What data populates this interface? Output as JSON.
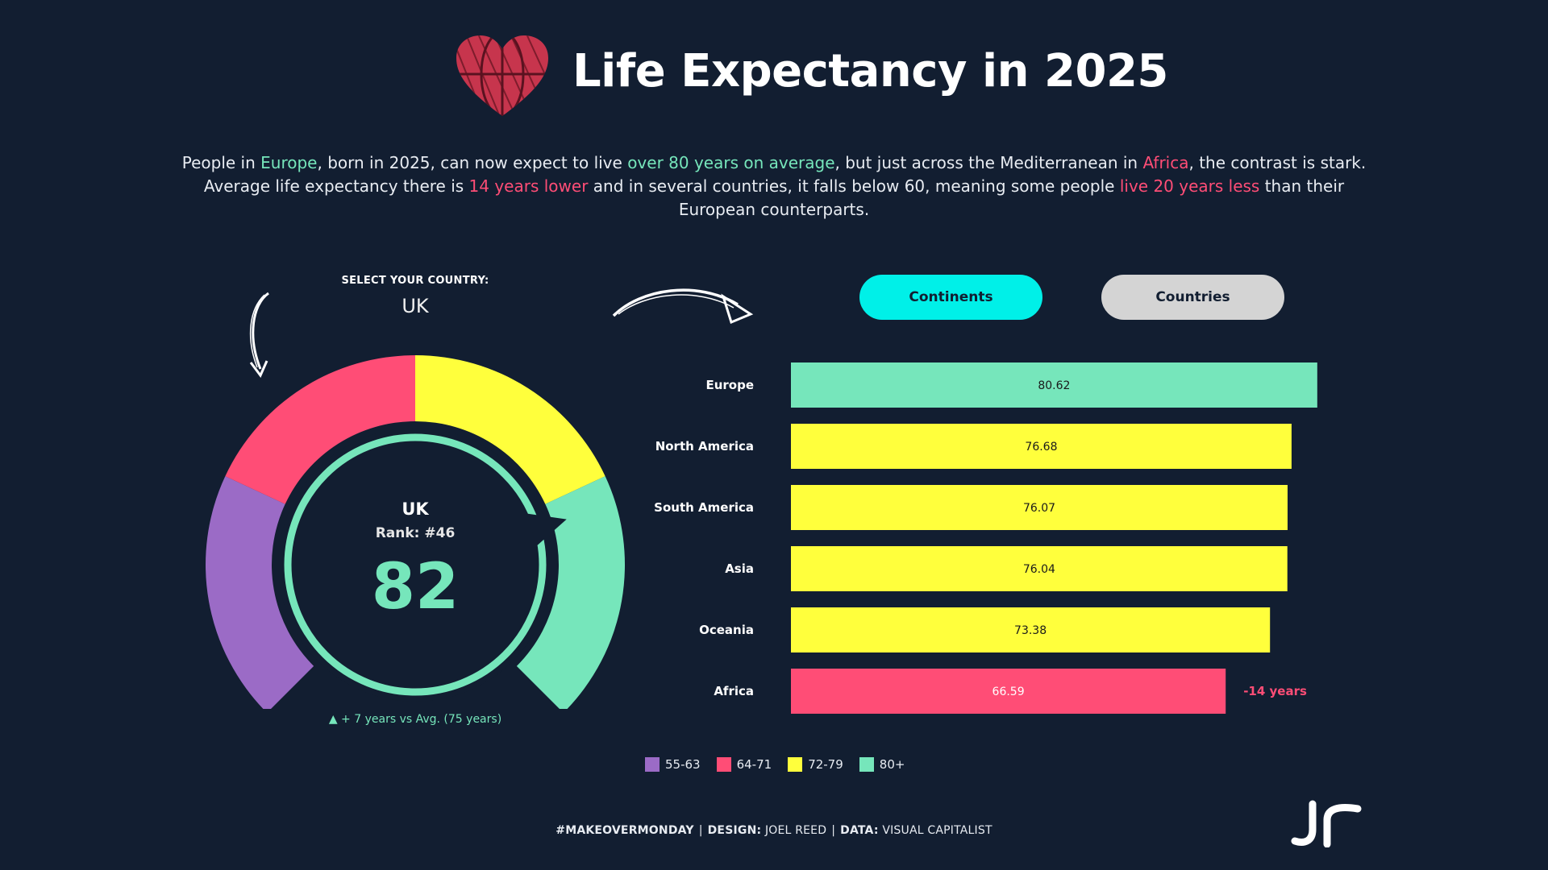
{
  "header": {
    "title": "Life Expectancy in 2025",
    "logo_icon": "heart-globe-icon"
  },
  "intro": {
    "line1_a": "People in ",
    "line1_b": "Europe",
    "line1_c": ", born in 2025, can now expect to live ",
    "line1_d": "over 80 years on average",
    "line1_e": ", but just across the Mediterranean in ",
    "line1_f": "Africa",
    "line1_g": ", the contrast is stark.",
    "line2_a": "Average life expectancy there is ",
    "line2_b": "14 years lower",
    "line2_c": " and in several countries, it falls below 60, meaning some people ",
    "line2_d": "live 20 years less",
    "line2_e": " than their",
    "line3": "European counterparts."
  },
  "selector": {
    "label": "SELECT YOUR COUNTRY:",
    "value": "UK"
  },
  "gauge": {
    "country": "UK",
    "rank": "Rank: #46",
    "value": "82",
    "value_num": 82,
    "comparison": "▲ + 7 years vs Avg. (75 years)",
    "segments": [
      {
        "range": "55-63",
        "color": "#9b6bc6"
      },
      {
        "range": "64-71",
        "color": "#ff4d76"
      },
      {
        "range": "72-79",
        "color": "#ffff3c"
      },
      {
        "range": "80+",
        "color": "#76e6bb"
      }
    ]
  },
  "toggles": {
    "continents": "Continents",
    "countries": "Countries",
    "active": "continents"
  },
  "chart_data": {
    "type": "bar",
    "orientation": "horizontal",
    "categories": [
      "Europe",
      "North America",
      "South America",
      "Asia",
      "Oceania",
      "Africa"
    ],
    "values": [
      80.62,
      76.68,
      76.07,
      76.04,
      73.38,
      66.59
    ],
    "value_labels": [
      "80.62",
      "76.68",
      "76.07",
      "76.04",
      "73.38",
      "66.59"
    ],
    "colors": [
      "#76e6bb",
      "#ffff3c",
      "#ffff3c",
      "#ffff3c",
      "#ffff3c",
      "#ff4d76"
    ],
    "annotation": {
      "category": "Africa",
      "text": "-14 years",
      "color": "#ff4d76"
    },
    "legend": [
      {
        "label": "55-63",
        "color": "#9b6bc6"
      },
      {
        "label": "64-71",
        "color": "#ff4d76"
      },
      {
        "label": "72-79",
        "color": "#ffff3c"
      },
      {
        "label": "80+",
        "color": "#76e6bb"
      }
    ],
    "legend_position": "bottom",
    "grid": false
  },
  "footer": {
    "tag": "#MAKEOVERMONDAY",
    "design_label": "DESIGN:",
    "design_value": "JOEL REED",
    "data_label": "DATA:",
    "data_value": "VISUAL CAPITALIST",
    "separator": "|"
  },
  "brand": {
    "logo_text": "Jr"
  }
}
